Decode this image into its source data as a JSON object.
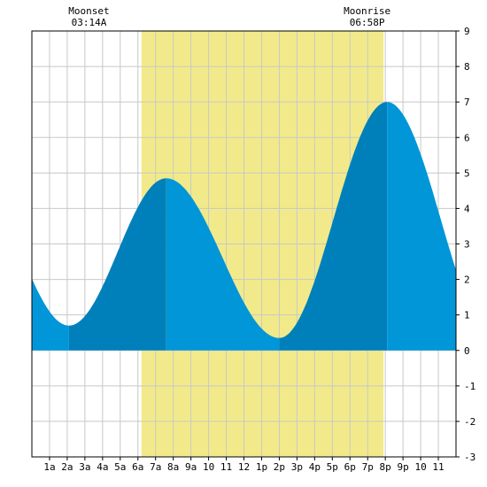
{
  "chart_data": {
    "type": "area",
    "title": "",
    "xlabel": "",
    "ylabel": "",
    "x_range": [
      0,
      24
    ],
    "ylim": [
      -3,
      9
    ],
    "y_ticks": [
      -3,
      -2,
      -1,
      0,
      1,
      2,
      3,
      4,
      5,
      6,
      7,
      8,
      9
    ],
    "x_tick_labels": [
      "1a",
      "2a",
      "3a",
      "4a",
      "5a",
      "6a",
      "7a",
      "8a",
      "9a",
      "10",
      "11",
      "12",
      "1p",
      "2p",
      "3p",
      "4p",
      "5p",
      "6p",
      "7p",
      "8p",
      "9p",
      "10",
      "11"
    ],
    "daylight": {
      "start_hour": 6.2,
      "end_hour": 19.9
    },
    "tide_extremes": [
      {
        "hour": 2.1,
        "height": 0.7,
        "kind": "low"
      },
      {
        "hour": 7.6,
        "height": 4.85,
        "kind": "high"
      },
      {
        "hour": 14.0,
        "height": 0.35,
        "kind": "low"
      },
      {
        "hour": 20.1,
        "height": 7.0,
        "kind": "high"
      }
    ],
    "start_value": 2.05,
    "end_value": 3.2,
    "colors": {
      "daylight": "#f2ea8a",
      "tide_light": "#0096d8",
      "tide_dark": "#0080ba",
      "grid": "#c8c8c8"
    },
    "annotations": [
      {
        "label": "Moonset",
        "time": "03:14A",
        "hour": 3.23
      },
      {
        "label": "Moonrise",
        "time": "06:58P",
        "hour": 18.97
      }
    ]
  }
}
